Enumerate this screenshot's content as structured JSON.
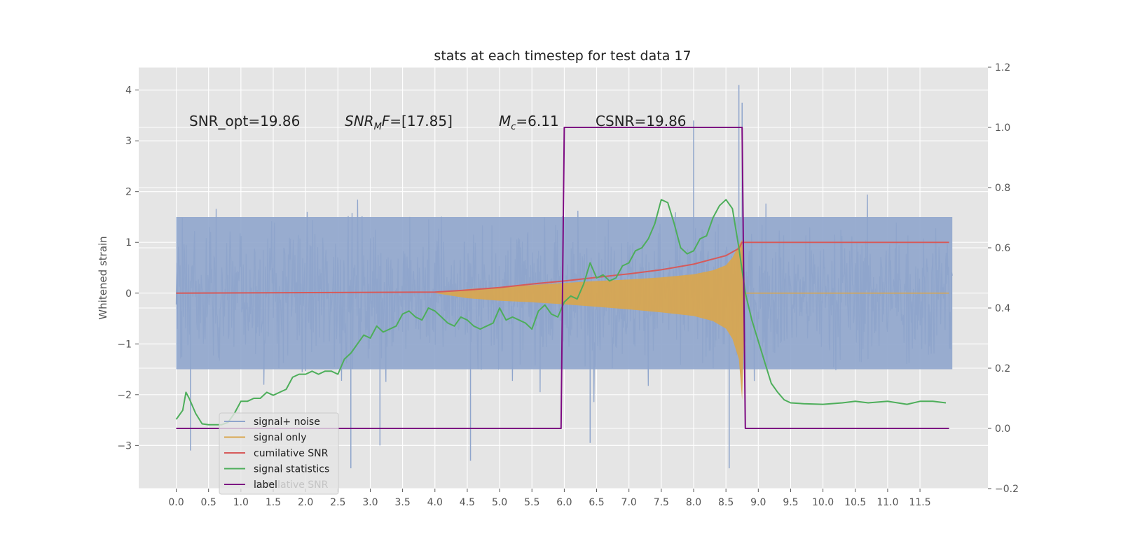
{
  "chart_data": {
    "type": "line",
    "title": "stats at each timestep for test data 17",
    "ylabel": "Whitened strain",
    "xlabel": "",
    "grid": true,
    "background": "#e5e5e5",
    "x_ticks": [
      "0.0",
      "0.5",
      "1.0",
      "1.5",
      "2.0",
      "2.5",
      "3.0",
      "3.5",
      "4.0",
      "4.5",
      "5.0",
      "5.5",
      "6.0",
      "6.5",
      "7.0",
      "7.5",
      "8.0",
      "8.5",
      "9.0",
      "9.5",
      "10.0",
      "10.5",
      "11.0",
      "11.5"
    ],
    "xlim": [
      -0.58,
      12.55
    ],
    "ylim_left": [
      -3.85,
      4.45
    ],
    "yticks_left": [
      -3,
      -2,
      -1,
      0,
      1,
      2,
      3,
      4
    ],
    "ylim_right": [
      -0.2,
      1.2
    ],
    "yticks_right": [
      "−0.2",
      "0.0",
      "0.2",
      "0.4",
      "0.6",
      "0.8",
      "1.0",
      "1.2"
    ],
    "annotations": [
      {
        "prefix": "SNR_opt=19.86",
        "sub": "",
        "suffix": ""
      },
      {
        "prefix": "SNR",
        "sub": "M",
        "suffix": "F=[17.85]"
      },
      {
        "prefix": "M",
        "sub": "c",
        "suffix": "=6.11"
      },
      {
        "prefix": "CSNR=19.86",
        "sub": "",
        "suffix": ""
      }
    ],
    "legend": {
      "placement": "lower-left",
      "entries": [
        "signal+ noise",
        "signal only",
        "cumilative SNR",
        "signal statistics",
        "label"
      ],
      "ghost_text": "cumilative SNR"
    },
    "series": [
      {
        "name": "signal+ noise",
        "axis": "left",
        "color": "#8fa5cc",
        "style": "noise",
        "t_range": [
          0.0,
          12.0
        ],
        "typical_range": [
          -1.5,
          1.5
        ],
        "peak_range": [
          -3.45,
          4.1
        ]
      },
      {
        "name": "signal only",
        "axis": "left",
        "color": "#d9a64e",
        "style": "envelope",
        "x": [
          4.0,
          4.5,
          5.0,
          5.5,
          6.0,
          6.5,
          7.0,
          7.5,
          8.0,
          8.3,
          8.5,
          8.6,
          8.7,
          8.75,
          8.8
        ],
        "upper": [
          0.0,
          0.08,
          0.12,
          0.16,
          0.2,
          0.24,
          0.27,
          0.31,
          0.37,
          0.45,
          0.55,
          0.7,
          0.95,
          1.05,
          0.0
        ],
        "lower": [
          0.0,
          -0.1,
          -0.15,
          -0.18,
          -0.22,
          -0.27,
          -0.32,
          -0.38,
          -0.45,
          -0.55,
          -0.7,
          -0.9,
          -1.3,
          -2.1,
          0.0
        ]
      },
      {
        "name": "cumilative SNR",
        "axis": "left",
        "color": "#d65a5a",
        "x": [
          0.0,
          4.0,
          4.5,
          5.0,
          5.5,
          6.0,
          6.5,
          7.0,
          7.5,
          8.0,
          8.5,
          8.7,
          8.75,
          11.95
        ],
        "y": [
          0.0,
          0.02,
          0.06,
          0.11,
          0.18,
          0.24,
          0.31,
          0.38,
          0.46,
          0.57,
          0.74,
          0.88,
          1.0,
          1.0
        ]
      },
      {
        "name": "signal statistics",
        "axis": "right",
        "color": "#4dae5a",
        "x": [
          0.0,
          0.1,
          0.15,
          0.2,
          0.3,
          0.4,
          0.5,
          0.6,
          0.7,
          0.8,
          0.9,
          1.0,
          1.1,
          1.2,
          1.3,
          1.4,
          1.5,
          1.6,
          1.7,
          1.8,
          1.9,
          2.0,
          2.1,
          2.2,
          2.3,
          2.4,
          2.5,
          2.6,
          2.7,
          2.8,
          2.9,
          3.0,
          3.1,
          3.2,
          3.3,
          3.4,
          3.5,
          3.6,
          3.7,
          3.8,
          3.9,
          4.0,
          4.1,
          4.2,
          4.3,
          4.4,
          4.5,
          4.6,
          4.7,
          4.8,
          4.9,
          5.0,
          5.1,
          5.2,
          5.3,
          5.4,
          5.5,
          5.6,
          5.7,
          5.8,
          5.9,
          6.0,
          6.1,
          6.2,
          6.3,
          6.4,
          6.5,
          6.6,
          6.7,
          6.8,
          6.9,
          7.0,
          7.1,
          7.2,
          7.3,
          7.4,
          7.5,
          7.6,
          7.7,
          7.8,
          7.9,
          8.0,
          8.1,
          8.2,
          8.3,
          8.4,
          8.5,
          8.6,
          8.7,
          8.8,
          8.9,
          9.0,
          9.1,
          9.2,
          9.3,
          9.4,
          9.5,
          9.7,
          10.0,
          10.3,
          10.5,
          10.7,
          11.0,
          11.3,
          11.5,
          11.7,
          11.9
        ],
        "y": [
          0.03,
          0.06,
          0.12,
          0.1,
          0.05,
          0.015,
          0.012,
          0.012,
          0.012,
          0.02,
          0.05,
          0.09,
          0.09,
          0.1,
          0.1,
          0.12,
          0.11,
          0.12,
          0.13,
          0.17,
          0.18,
          0.18,
          0.19,
          0.18,
          0.19,
          0.19,
          0.18,
          0.23,
          0.25,
          0.28,
          0.31,
          0.3,
          0.34,
          0.32,
          0.33,
          0.34,
          0.38,
          0.39,
          0.37,
          0.36,
          0.4,
          0.39,
          0.37,
          0.35,
          0.34,
          0.37,
          0.36,
          0.34,
          0.33,
          0.34,
          0.35,
          0.4,
          0.36,
          0.37,
          0.36,
          0.35,
          0.33,
          0.39,
          0.41,
          0.38,
          0.37,
          0.42,
          0.44,
          0.43,
          0.48,
          0.55,
          0.5,
          0.51,
          0.49,
          0.5,
          0.54,
          0.55,
          0.59,
          0.6,
          0.63,
          0.68,
          0.76,
          0.75,
          0.68,
          0.6,
          0.58,
          0.59,
          0.63,
          0.64,
          0.7,
          0.74,
          0.76,
          0.73,
          0.6,
          0.45,
          0.36,
          0.29,
          0.22,
          0.15,
          0.12,
          0.095,
          0.085,
          0.082,
          0.08,
          0.085,
          0.09,
          0.085,
          0.09,
          0.08,
          0.09,
          0.09,
          0.085
        ]
      },
      {
        "name": "label",
        "axis": "right",
        "color": "#7d0a82",
        "x": [
          0.0,
          5.95,
          6.0,
          8.75,
          8.8,
          11.95
        ],
        "y": [
          0.0,
          0.0,
          1.0,
          1.0,
          0.0,
          0.0
        ]
      }
    ]
  }
}
